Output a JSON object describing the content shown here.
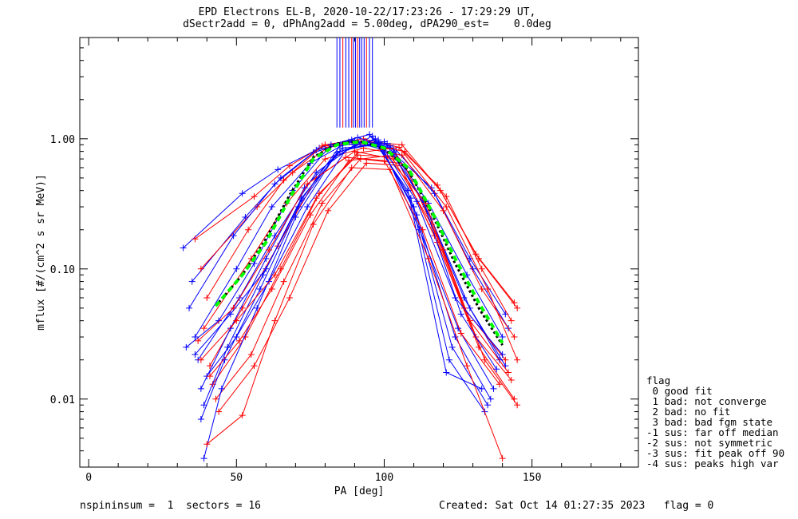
{
  "title_line1": "EPD Electrons EL-B, 2020-10-22/17:23:26 - 17:29:29 UT,",
  "title_line2": "dSectr2add = 0, dPhAng2add = 5.00deg, dPA290_est=    0.0deg",
  "footer_left": "nspininsum =  1  sectors = 16",
  "footer_right": "Created: Sat Oct 14 01:27:35 2023   flag = 0",
  "legend": {
    "title": "flag",
    "items": [
      " 0 good fit",
      " 1 bad: not converge",
      " 2 bad: no fit",
      " 3 bad: bad fgm state",
      "-1 sus: far off median",
      "-2 sus: not symmetric",
      "-3 sus: fit peak off 90",
      "-4 sus: peaks high var"
    ]
  },
  "chart_data": {
    "type": "line",
    "xlabel": "PA [deg]",
    "ylabel": "mflux [#/(cm^2 s sr MeV)]",
    "xlim": [
      -3,
      186
    ],
    "ylim": [
      0.003,
      6.0
    ],
    "yscale": "log",
    "xticks": [
      0,
      50,
      100,
      150
    ],
    "xtick_labels": [
      "0",
      "50",
      "100",
      "150"
    ],
    "yticks": [
      0.01,
      0.1,
      1.0
    ],
    "ytick_labels": [
      "0.01",
      "0.10",
      "1.00"
    ],
    "colors": {
      "series_a": "#0000ff",
      "series_b": "#ff0000",
      "fit": "#00ff00",
      "median": "#000000"
    },
    "series": [
      {
        "color": "blue",
        "x": [
          32,
          52,
          64,
          77,
          90,
          103,
          116,
          129,
          141
        ],
        "y": [
          0.145,
          0.38,
          0.58,
          0.82,
          0.95,
          0.78,
          0.42,
          0.12,
          0.045
        ]
      },
      {
        "color": "red",
        "x": [
          36,
          56,
          68,
          80,
          93,
          105,
          118,
          131,
          144
        ],
        "y": [
          0.17,
          0.36,
          0.62,
          0.9,
          1.0,
          0.86,
          0.44,
          0.13,
          0.055
        ]
      },
      {
        "color": "blue",
        "x": [
          35,
          53,
          65,
          78,
          91,
          104,
          117,
          130,
          142
        ],
        "y": [
          0.08,
          0.25,
          0.5,
          0.85,
          1.02,
          0.82,
          0.38,
          0.1,
          0.035
        ]
      },
      {
        "color": "red",
        "x": [
          38,
          57,
          69,
          81,
          94,
          106,
          119,
          132,
          145
        ],
        "y": [
          0.1,
          0.3,
          0.55,
          0.86,
          0.95,
          0.9,
          0.4,
          0.12,
          0.05
        ]
      },
      {
        "color": "blue",
        "x": [
          34,
          49,
          63,
          76,
          89,
          102,
          115,
          128,
          140
        ],
        "y": [
          0.05,
          0.18,
          0.45,
          0.78,
          0.98,
          0.88,
          0.32,
          0.09,
          0.03
        ]
      },
      {
        "color": "red",
        "x": [
          40,
          54,
          66,
          79,
          92,
          107,
          121,
          133,
          143
        ],
        "y": [
          0.06,
          0.2,
          0.48,
          0.88,
          0.92,
          0.8,
          0.36,
          0.1,
          0.04
        ]
      },
      {
        "color": "blue",
        "x": [
          36,
          50,
          62,
          75,
          88,
          101,
          114,
          127,
          139
        ],
        "y": [
          0.03,
          0.1,
          0.3,
          0.65,
          0.95,
          0.92,
          0.3,
          0.06,
          0.02
        ]
      },
      {
        "color": "red",
        "x": [
          39,
          55,
          67,
          80,
          93,
          106,
          120,
          133,
          144
        ],
        "y": [
          0.035,
          0.12,
          0.32,
          0.7,
          0.85,
          0.75,
          0.28,
          0.07,
          0.03
        ]
      },
      {
        "color": "blue",
        "x": [
          37,
          51,
          63,
          77,
          90,
          103,
          116,
          129,
          141
        ],
        "y": [
          0.02,
          0.06,
          0.18,
          0.55,
          0.9,
          0.85,
          0.24,
          0.05,
          0.018
        ]
      },
      {
        "color": "red",
        "x": [
          41,
          52,
          64,
          77,
          90,
          103,
          116,
          129,
          142
        ],
        "y": [
          0.018,
          0.05,
          0.15,
          0.5,
          0.8,
          0.7,
          0.22,
          0.04,
          0.016
        ]
      },
      {
        "color": "blue",
        "x": [
          38,
          48,
          60,
          73,
          86,
          99,
          112,
          125,
          137
        ],
        "y": [
          0.012,
          0.035,
          0.12,
          0.42,
          0.85,
          0.9,
          0.2,
          0.035,
          0.012
        ]
      },
      {
        "color": "red",
        "x": [
          42,
          53,
          65,
          78,
          91,
          104,
          117,
          131,
          143
        ],
        "y": [
          0.013,
          0.03,
          0.1,
          0.38,
          0.75,
          0.72,
          0.18,
          0.03,
          0.014
        ]
      },
      {
        "color": "blue",
        "x": [
          39,
          47,
          59,
          72,
          85,
          98,
          111,
          124,
          136
        ],
        "y": [
          0.009,
          0.025,
          0.09,
          0.35,
          0.8,
          0.95,
          0.26,
          0.03,
          0.01
        ]
      },
      {
        "color": "red",
        "x": [
          43,
          55,
          66,
          79,
          92,
          105,
          118,
          132,
          144
        ],
        "y": [
          0.01,
          0.022,
          0.08,
          0.32,
          0.7,
          0.65,
          0.16,
          0.025,
          0.01
        ]
      },
      {
        "color": "blue",
        "x": [
          38,
          46,
          58,
          71,
          84,
          97,
          110,
          123,
          135
        ],
        "y": [
          0.007,
          0.02,
          0.07,
          0.3,
          0.78,
          1.0,
          0.3,
          0.025,
          0.009
        ]
      },
      {
        "color": "red",
        "x": [
          44,
          56,
          68,
          81,
          94,
          107,
          120,
          134,
          145
        ],
        "y": [
          0.008,
          0.018,
          0.06,
          0.28,
          0.65,
          0.62,
          0.14,
          0.02,
          0.009
        ]
      },
      {
        "color": "blue",
        "x": [
          39,
          45,
          57,
          70,
          83,
          96,
          109,
          122,
          134
        ],
        "y": [
          0.0035,
          0.012,
          0.05,
          0.25,
          0.72,
          1.05,
          0.35,
          0.02,
          0.008
        ]
      },
      {
        "color": "red",
        "x": [
          40,
          52,
          63,
          76,
          89,
          102,
          115,
          128,
          140
        ],
        "y": [
          0.0045,
          0.0075,
          0.04,
          0.22,
          0.6,
          0.58,
          0.12,
          0.018,
          0.0035
        ]
      },
      {
        "color": "blue",
        "x": [
          33,
          44,
          56,
          69,
          82,
          95,
          108,
          121,
          133
        ],
        "y": [
          0.025,
          0.04,
          0.11,
          0.4,
          0.9,
          1.08,
          0.4,
          0.016,
          0.012
        ]
      },
      {
        "color": "red",
        "x": [
          37,
          49,
          61,
          74,
          87,
          100,
          113,
          126,
          139
        ],
        "y": [
          0.028,
          0.05,
          0.14,
          0.45,
          0.72,
          0.68,
          0.2,
          0.032,
          0.013
        ]
      },
      {
        "color": "blue",
        "x": [
          40,
          50,
          61,
          74,
          87,
          100,
          113,
          126,
          138
        ],
        "y": [
          0.015,
          0.03,
          0.08,
          0.3,
          0.82,
          0.95,
          0.34,
          0.045,
          0.017
        ]
      },
      {
        "color": "red",
        "x": [
          41,
          51,
          62,
          75,
          88,
          101,
          114,
          127,
          141
        ],
        "y": [
          0.015,
          0.028,
          0.07,
          0.26,
          0.68,
          0.74,
          0.32,
          0.05,
          0.02
        ]
      },
      {
        "color": "blue",
        "x": [
          36,
          48,
          60,
          72,
          85,
          98,
          111,
          124,
          140
        ],
        "y": [
          0.022,
          0.045,
          0.1,
          0.34,
          0.88,
          0.98,
          0.33,
          0.06,
          0.022
        ]
      },
      {
        "color": "red",
        "x": [
          38,
          50,
          63,
          77,
          91,
          105,
          121,
          135,
          145
        ],
        "y": [
          0.02,
          0.04,
          0.09,
          0.35,
          0.78,
          0.86,
          0.3,
          0.07,
          0.02
        ]
      }
    ],
    "fit_curve": {
      "color": "green",
      "x": [
        43,
        52,
        60,
        68,
        76,
        84,
        92,
        100,
        108,
        116,
        124,
        132,
        140
      ],
      "y": [
        0.052,
        0.09,
        0.16,
        0.35,
        0.7,
        0.9,
        0.95,
        0.85,
        0.6,
        0.28,
        0.12,
        0.055,
        0.027
      ]
    },
    "median_curve": {
      "color": "black",
      "x": [
        43,
        52,
        60,
        68,
        76,
        84,
        92,
        100,
        108,
        116,
        124,
        132,
        140
      ],
      "y": [
        0.052,
        0.09,
        0.17,
        0.37,
        0.72,
        0.92,
        0.96,
        0.84,
        0.58,
        0.27,
        0.11,
        0.05,
        0.026
      ]
    },
    "spikes": [
      {
        "x": 84,
        "color": "blue"
      },
      {
        "x": 85,
        "color": "blue"
      },
      {
        "x": 86,
        "color": "red"
      },
      {
        "x": 87,
        "color": "blue"
      },
      {
        "x": 88,
        "color": "blue"
      },
      {
        "x": 89,
        "color": "red"
      },
      {
        "x": 89.6,
        "color": "blue"
      },
      {
        "x": 90.3,
        "color": "blue"
      },
      {
        "x": 91,
        "color": "red"
      },
      {
        "x": 91.7,
        "color": "blue"
      },
      {
        "x": 92.4,
        "color": "blue"
      },
      {
        "x": 93.2,
        "color": "blue"
      },
      {
        "x": 94,
        "color": "red"
      },
      {
        "x": 95,
        "color": "blue"
      },
      {
        "x": 96,
        "color": "blue"
      }
    ]
  }
}
